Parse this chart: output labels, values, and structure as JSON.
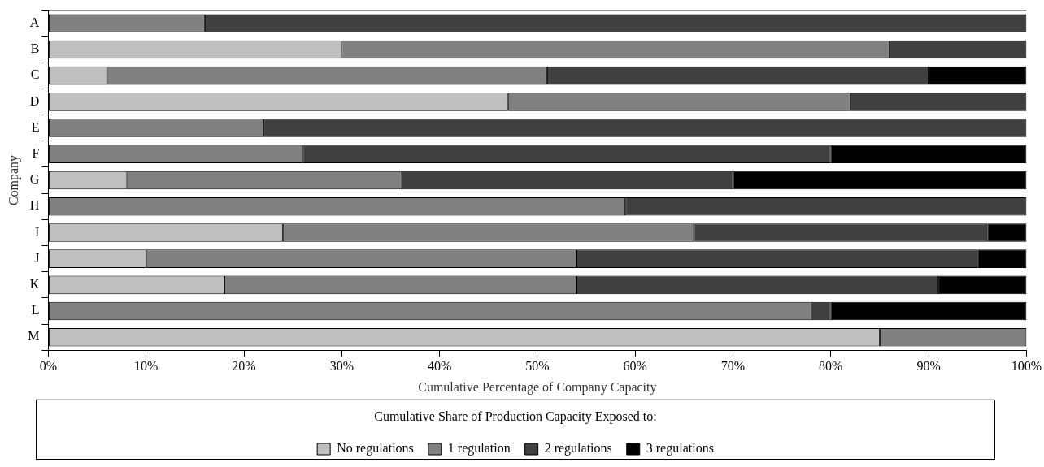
{
  "chart_data": {
    "type": "bar",
    "orientation": "horizontal",
    "stacked": true,
    "xlabel": "Cumulative Percentage of Company Capacity",
    "ylabel": "Company",
    "legend_title": "Cumulative Share of Production Capacity Exposed to:",
    "legend": "bottom",
    "grid": false,
    "categories": [
      "A",
      "B",
      "C",
      "D",
      "E",
      "F",
      "G",
      "H",
      "I",
      "J",
      "K",
      "L",
      "M"
    ],
    "xlim": [
      0,
      100
    ],
    "xticks": [
      {
        "value": 0,
        "label": "0%"
      },
      {
        "value": 10,
        "label": "10%"
      },
      {
        "value": 20,
        "label": "20%"
      },
      {
        "value": 30,
        "label": "30%"
      },
      {
        "value": 40,
        "label": "40%"
      },
      {
        "value": 50,
        "label": "50%"
      },
      {
        "value": 60,
        "label": "60%"
      },
      {
        "value": 70,
        "label": "70%"
      },
      {
        "value": 80,
        "label": "80%"
      },
      {
        "value": 90,
        "label": "90%"
      },
      {
        "value": 100,
        "label": "100%"
      }
    ],
    "series": [
      {
        "name": "No regulations",
        "color": "#bfbfbf",
        "values": [
          0,
          30,
          6,
          47,
          0,
          0,
          8,
          0,
          24,
          10,
          18,
          0,
          85
        ]
      },
      {
        "name": "1 regulation",
        "color": "#808080",
        "values": [
          16,
          56,
          45,
          35,
          22,
          26,
          28,
          59,
          42,
          44,
          36,
          78,
          15
        ]
      },
      {
        "name": "2 regulations",
        "color": "#404040",
        "values": [
          84,
          14,
          39,
          18,
          78,
          54,
          34,
          41,
          30,
          41,
          37,
          2,
          0
        ]
      },
      {
        "name": "3 regulations",
        "color": "#000000",
        "values": [
          0,
          0,
          10,
          0,
          0,
          20,
          30,
          0,
          4,
          5,
          9,
          20,
          0
        ]
      }
    ]
  }
}
